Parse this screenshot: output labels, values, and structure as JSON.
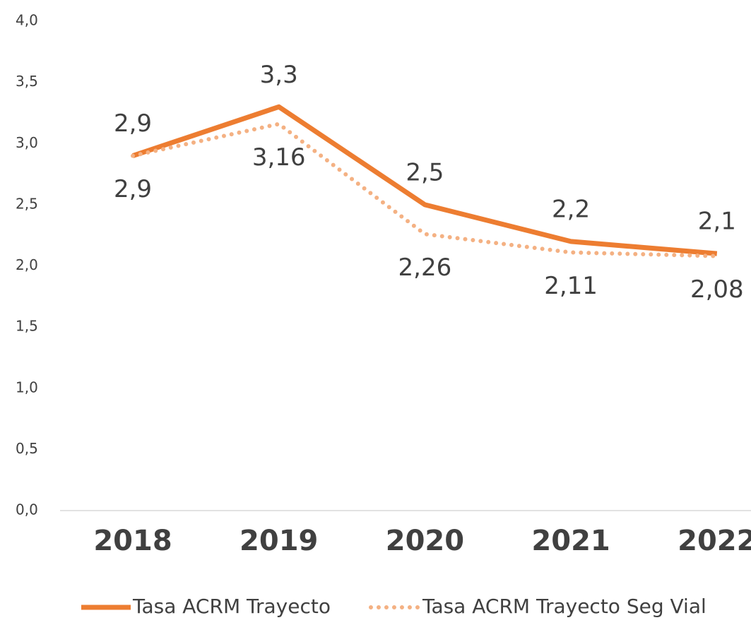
{
  "chart_data": {
    "type": "line",
    "categories": [
      "2018",
      "2019",
      "2020",
      "2021",
      "2022"
    ],
    "series": [
      {
        "name": "Tasa ACRM Trayecto",
        "color": "#ed7d31",
        "style": "solid",
        "values": [
          2.9,
          3.3,
          2.5,
          2.2,
          2.1
        ],
        "value_labels": [
          "2,9",
          "3,3",
          "2,5",
          "2,2",
          "2,1"
        ]
      },
      {
        "name": "Tasa ACRM Trayecto Seg Vial",
        "color": "#f4b183",
        "style": "dotted",
        "values": [
          2.9,
          3.16,
          2.26,
          2.11,
          2.08
        ],
        "value_labels": [
          "2,9",
          "3,16",
          "2,26",
          "2,11",
          "2,08"
        ]
      }
    ],
    "ylim": [
      0,
      4
    ],
    "yticks": [
      {
        "value": 0,
        "label": "0,0"
      },
      {
        "value": 0.5,
        "label": "0,5"
      },
      {
        "value": 1,
        "label": "1,0"
      },
      {
        "value": 1.5,
        "label": "1,5"
      },
      {
        "value": 2,
        "label": "2,0"
      },
      {
        "value": 2.5,
        "label": "2,5"
      },
      {
        "value": 3,
        "label": "3,0"
      },
      {
        "value": 3.5,
        "label": "3,5"
      },
      {
        "value": 4,
        "label": "4,0"
      }
    ],
    "legend": "bottom",
    "grid": false
  }
}
